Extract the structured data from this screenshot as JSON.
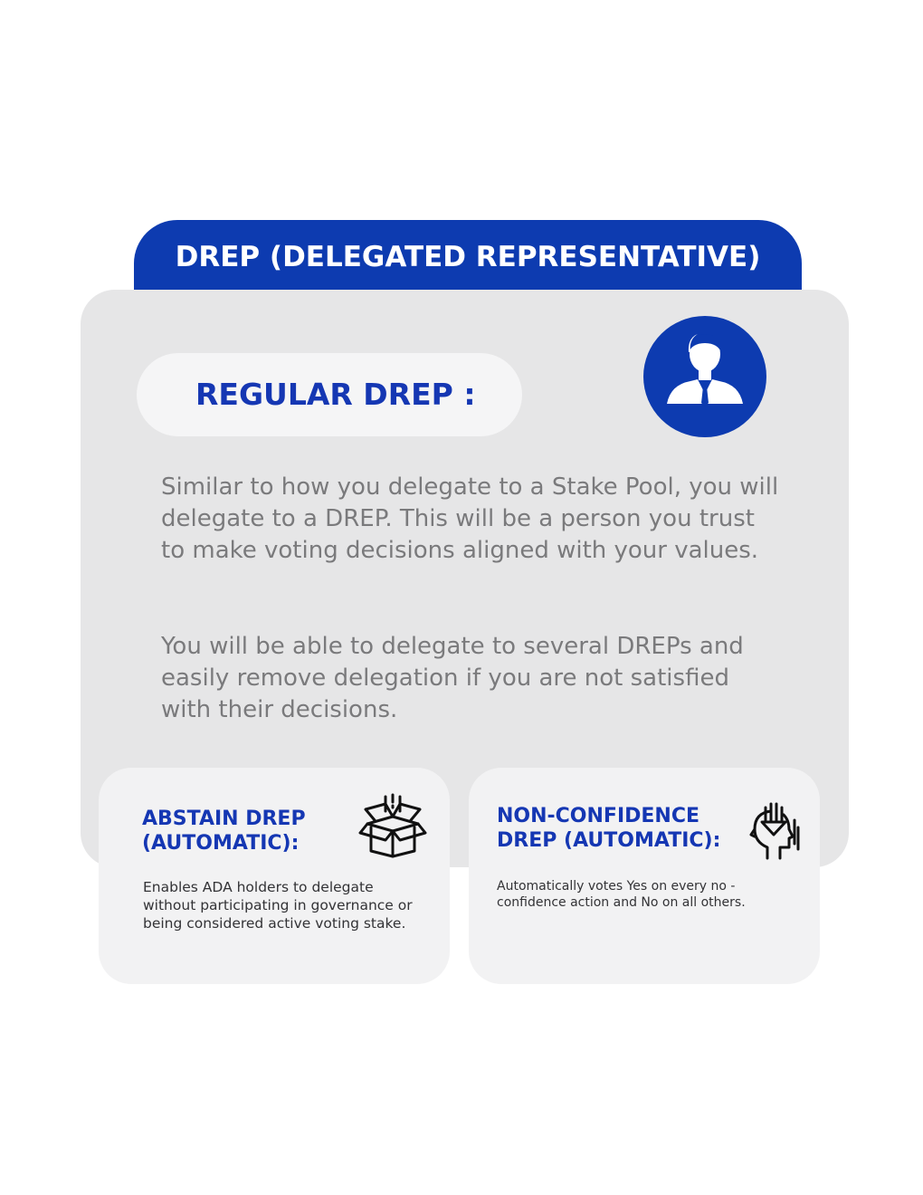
{
  "header": {
    "title": "DREP (DELEGATED REPRESENTATIVE)"
  },
  "regular": {
    "title": "REGULAR DREP :",
    "icon": "person-with-tie-icon",
    "paragraph_1": "Similar to how you delegate to a Stake Pool, you will delegate to a DREP. This will be a person you trust to make voting decisions aligned with your values.",
    "paragraph_2": "You will be able to delegate to several DREPs and easily remove delegation if you are not satisfied with their decisions."
  },
  "abstain": {
    "title_line_1": "ABSTAIN DREP",
    "title_line_2": "(AUTOMATIC):",
    "icon": "open-box-icon",
    "description": "Enables ADA holders to delegate without participating in governance or being considered active voting stake."
  },
  "non_confidence": {
    "title_line_1": "NON-CONFIDENCE",
    "title_line_2": "DREP (AUTOMATIC):",
    "icon": "head-down-arrow-icon",
    "description": "Automatically votes Yes on every no -confidence action and No on all others."
  },
  "colors": {
    "brand_blue": "#0d3bb0",
    "card_gray": "#e6e6e7",
    "text_gray": "#7a7a7c"
  }
}
